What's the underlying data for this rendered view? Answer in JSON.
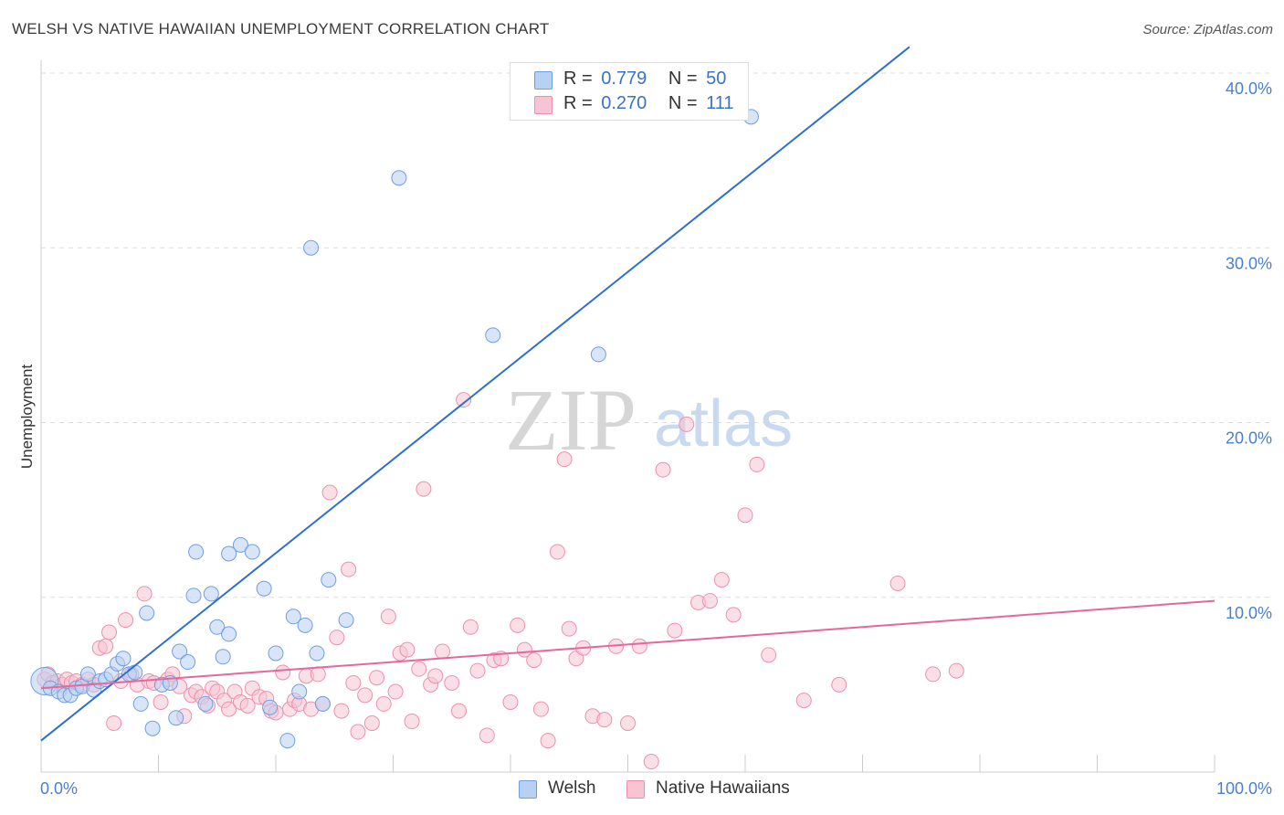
{
  "title": "WELSH VS NATIVE HAWAIIAN UNEMPLOYMENT CORRELATION CHART",
  "source": "Source: ZipAtlas.com",
  "watermark": {
    "zip": "ZIP",
    "atlas": "atlas"
  },
  "legend": {
    "welsh": {
      "r_label": "R =",
      "r_value": "0.779",
      "n_label": "N =",
      "n_value": "50"
    },
    "hawaiian": {
      "r_label": "R =",
      "r_value": "0.270",
      "n_label": "N =",
      "n_value": "111"
    }
  },
  "bottom_legend": {
    "welsh": "Welsh",
    "hawaiian": "Native Hawaiians"
  },
  "colors": {
    "welsh_fill": "#b8d0f2",
    "welsh_stroke": "#6f9ee0",
    "welsh_line": "#2d6fd0",
    "hawaiian_fill": "#f8c4d4",
    "hawaiian_stroke": "#ee8fad",
    "hawaiian_line": "#e4689a",
    "tick": "#4a7fd0",
    "grid": "#dddddd"
  },
  "chart_data": {
    "type": "scatter",
    "title": "WELSH VS NATIVE HAWAIIAN UNEMPLOYMENT CORRELATION CHART",
    "xlabel": "",
    "ylabel": "Unemployment",
    "xlim": [
      0,
      100
    ],
    "ylim": [
      0,
      40
    ],
    "x_tick_labels": [
      "0.0%",
      "100.0%"
    ],
    "y_ticks": [
      10,
      20,
      30,
      40
    ],
    "y_tick_labels": [
      "10.0%",
      "20.0%",
      "30.0%",
      "40.0%"
    ],
    "grid": true,
    "series": [
      {
        "name": "Welsh",
        "r": 0.779,
        "n": 50,
        "trend": {
          "x": [
            0,
            74
          ],
          "y": [
            1.8,
            41.5
          ]
        },
        "points": [
          [
            0.3,
            5.2
          ],
          [
            0.8,
            4.8
          ],
          [
            1.5,
            4.6
          ],
          [
            2.0,
            4.4
          ],
          [
            2.5,
            4.4
          ],
          [
            3.0,
            4.8
          ],
          [
            3.5,
            4.9
          ],
          [
            4.0,
            5.6
          ],
          [
            4.5,
            4.7
          ],
          [
            5.0,
            5.2
          ],
          [
            5.5,
            5.3
          ],
          [
            6.0,
            5.6
          ],
          [
            6.5,
            6.2
          ],
          [
            7.0,
            6.5
          ],
          [
            7.5,
            5.6
          ],
          [
            8.0,
            5.7
          ],
          [
            8.5,
            3.9
          ],
          [
            9.0,
            9.1
          ],
          [
            9.5,
            2.5
          ],
          [
            10.3,
            5.0
          ],
          [
            11.0,
            5.1
          ],
          [
            11.5,
            3.1
          ],
          [
            11.8,
            6.9
          ],
          [
            12.5,
            6.3
          ],
          [
            13.0,
            10.1
          ],
          [
            13.2,
            12.6
          ],
          [
            14.0,
            3.9
          ],
          [
            14.5,
            10.2
          ],
          [
            15.0,
            8.3
          ],
          [
            15.5,
            6.6
          ],
          [
            16.0,
            7.9
          ],
          [
            16.0,
            12.5
          ],
          [
            17.0,
            13.0
          ],
          [
            18.0,
            12.6
          ],
          [
            19.0,
            10.5
          ],
          [
            19.5,
            3.7
          ],
          [
            20.0,
            6.8
          ],
          [
            21.0,
            1.8
          ],
          [
            21.5,
            8.9
          ],
          [
            22.0,
            4.6
          ],
          [
            22.5,
            8.4
          ],
          [
            23.5,
            6.8
          ],
          [
            24.0,
            3.9
          ],
          [
            23.0,
            30.0
          ],
          [
            24.5,
            11.0
          ],
          [
            26.0,
            8.7
          ],
          [
            30.5,
            34.0
          ],
          [
            38.5,
            25.0
          ],
          [
            47.5,
            23.9
          ],
          [
            60.5,
            37.5
          ]
        ]
      },
      {
        "name": "Native Hawaiians",
        "r": 0.27,
        "n": 111,
        "trend": {
          "x": [
            0,
            100
          ],
          "y": [
            4.8,
            9.8
          ]
        },
        "points": [
          [
            0.3,
            5.3
          ],
          [
            0.6,
            5.6
          ],
          [
            1.0,
            5.1
          ],
          [
            1.4,
            5.2
          ],
          [
            1.8,
            5.0
          ],
          [
            2.2,
            5.3
          ],
          [
            2.6,
            5.1
          ],
          [
            3.0,
            5.2
          ],
          [
            3.5,
            5.0
          ],
          [
            4.0,
            5.3
          ],
          [
            4.5,
            5.0
          ],
          [
            5.0,
            7.1
          ],
          [
            5.5,
            7.2
          ],
          [
            5.8,
            8.0
          ],
          [
            6.2,
            2.8
          ],
          [
            6.8,
            5.2
          ],
          [
            7.2,
            8.7
          ],
          [
            7.7,
            5.6
          ],
          [
            8.2,
            5.0
          ],
          [
            8.8,
            10.2
          ],
          [
            9.2,
            5.2
          ],
          [
            9.6,
            5.1
          ],
          [
            10.2,
            4.0
          ],
          [
            10.8,
            5.3
          ],
          [
            11.2,
            5.6
          ],
          [
            11.8,
            4.9
          ],
          [
            12.2,
            3.2
          ],
          [
            12.8,
            4.4
          ],
          [
            13.2,
            4.6
          ],
          [
            13.7,
            4.3
          ],
          [
            14.2,
            3.8
          ],
          [
            14.6,
            4.8
          ],
          [
            15.0,
            4.6
          ],
          [
            15.6,
            4.1
          ],
          [
            16.0,
            3.6
          ],
          [
            16.5,
            4.6
          ],
          [
            17.0,
            4.0
          ],
          [
            17.6,
            3.8
          ],
          [
            18.0,
            4.8
          ],
          [
            18.6,
            4.3
          ],
          [
            19.2,
            4.2
          ],
          [
            19.6,
            3.5
          ],
          [
            20.0,
            3.4
          ],
          [
            20.6,
            5.7
          ],
          [
            21.2,
            3.6
          ],
          [
            21.6,
            4.1
          ],
          [
            22.0,
            3.9
          ],
          [
            22.6,
            5.5
          ],
          [
            23.0,
            3.6
          ],
          [
            23.6,
            5.6
          ],
          [
            24.0,
            3.9
          ],
          [
            24.6,
            16.0
          ],
          [
            25.2,
            7.7
          ],
          [
            25.6,
            3.5
          ],
          [
            26.2,
            11.6
          ],
          [
            26.6,
            5.1
          ],
          [
            27.0,
            2.3
          ],
          [
            27.6,
            4.4
          ],
          [
            28.2,
            2.8
          ],
          [
            28.6,
            5.4
          ],
          [
            29.2,
            3.9
          ],
          [
            29.6,
            8.9
          ],
          [
            30.2,
            4.6
          ],
          [
            30.6,
            6.8
          ],
          [
            31.2,
            7.0
          ],
          [
            31.6,
            2.9
          ],
          [
            32.2,
            5.9
          ],
          [
            32.6,
            16.2
          ],
          [
            33.2,
            5.0
          ],
          [
            33.6,
            5.5
          ],
          [
            34.2,
            6.9
          ],
          [
            35.0,
            5.1
          ],
          [
            35.6,
            3.5
          ],
          [
            36.0,
            21.3
          ],
          [
            36.6,
            8.3
          ],
          [
            37.2,
            5.8
          ],
          [
            38.0,
            2.1
          ],
          [
            38.6,
            6.4
          ],
          [
            39.2,
            6.5
          ],
          [
            40.0,
            4.0
          ],
          [
            40.6,
            8.4
          ],
          [
            41.2,
            7.0
          ],
          [
            42.0,
            6.4
          ],
          [
            42.6,
            3.6
          ],
          [
            43.2,
            1.8
          ],
          [
            44.0,
            12.6
          ],
          [
            44.6,
            17.9
          ],
          [
            45.0,
            8.2
          ],
          [
            45.6,
            6.5
          ],
          [
            46.2,
            7.1
          ],
          [
            47.0,
            3.2
          ],
          [
            48.0,
            3.0
          ],
          [
            49.0,
            7.2
          ],
          [
            50.0,
            2.8
          ],
          [
            51.0,
            7.2
          ],
          [
            52.0,
            0.6
          ],
          [
            53.0,
            17.3
          ],
          [
            54.0,
            8.1
          ],
          [
            55.0,
            19.9
          ],
          [
            56.0,
            9.7
          ],
          [
            57.0,
            9.8
          ],
          [
            58.0,
            11.0
          ],
          [
            59.0,
            9.0
          ],
          [
            60.0,
            14.7
          ],
          [
            61.0,
            17.6
          ],
          [
            62.0,
            6.7
          ],
          [
            65.0,
            4.1
          ],
          [
            68.0,
            5.0
          ],
          [
            73.0,
            10.8
          ],
          [
            76.0,
            5.6
          ],
          [
            78.0,
            5.8
          ]
        ]
      }
    ]
  }
}
